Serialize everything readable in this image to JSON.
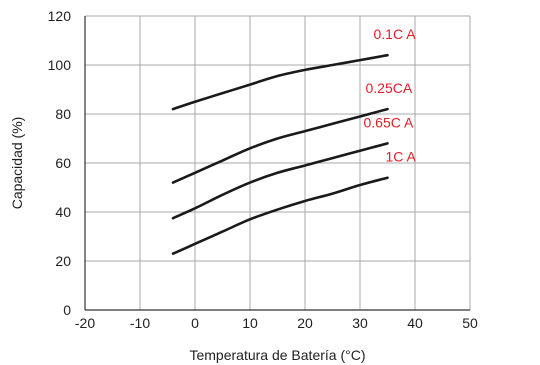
{
  "chart_data": {
    "type": "line",
    "xlabel": "Temperatura de Batería (°C)",
    "ylabel": "Capacidad (%)",
    "xlim": [
      -20,
      50
    ],
    "ylim": [
      0,
      120
    ],
    "x_ticks": [
      -20,
      -10,
      0,
      10,
      20,
      30,
      40,
      50
    ],
    "y_ticks": [
      0,
      20,
      40,
      60,
      80,
      100,
      120
    ],
    "grid": true,
    "series_color": "#1a1a1a",
    "label_color": "#e0202a",
    "series": [
      {
        "name": "0.1C A",
        "x": [
          -4,
          0,
          5,
          10,
          15,
          20,
          25,
          30,
          35
        ],
        "y": [
          82,
          85,
          88.5,
          92,
          95.5,
          98,
          100,
          102,
          104
        ]
      },
      {
        "name": "0.25CA",
        "x": [
          -4,
          0,
          5,
          10,
          15,
          20,
          25,
          30,
          35
        ],
        "y": [
          52,
          56,
          61,
          66,
          70,
          73,
          76,
          79,
          82
        ]
      },
      {
        "name": "0.65C A",
        "x": [
          -4,
          0,
          5,
          10,
          15,
          20,
          25,
          30,
          35
        ],
        "y": [
          37.5,
          41.5,
          47,
          52,
          56,
          59,
          62,
          65,
          68
        ]
      },
      {
        "name": "1C A",
        "x": [
          -4,
          0,
          5,
          10,
          15,
          20,
          25,
          30,
          35
        ],
        "y": [
          23,
          27,
          32,
          37,
          41,
          44.5,
          47.5,
          51,
          54
        ]
      }
    ]
  }
}
